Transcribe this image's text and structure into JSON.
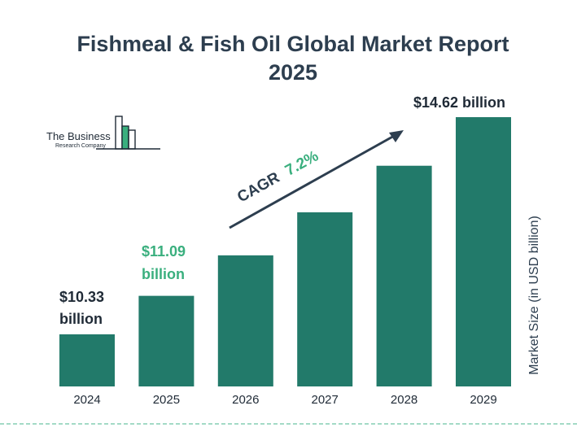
{
  "title": {
    "line1": "Fishmeal & Fish Oil Global Market Report",
    "line2": "2025"
  },
  "logo": {
    "line1": "The Business",
    "line2": "Research Company"
  },
  "colors": {
    "bar": "#227a6a",
    "title": "#2d3e4f",
    "highlight": "#3aaf7e",
    "dark_text": "#1f2a36",
    "dash_line": "#6cc4a4"
  },
  "cagr": {
    "label": "CAGR",
    "value": "7.2%"
  },
  "chart_data": {
    "type": "bar",
    "categories": [
      "2024",
      "2025",
      "2026",
      "2027",
      "2028",
      "2029"
    ],
    "values": [
      10.33,
      11.09,
      11.89,
      12.74,
      13.66,
      14.62
    ],
    "ylabel": "Market Size (in USD billion)",
    "ylim": [
      9.3,
      14.62
    ],
    "grid": false,
    "data_labels": [
      {
        "index": 0,
        "line1": "$10.33",
        "line2": "billion"
      },
      {
        "index": 1,
        "line1": "$11.09",
        "line2": "billion"
      },
      {
        "index": 5,
        "line1": "$14.62 billion",
        "line2": ""
      }
    ]
  }
}
